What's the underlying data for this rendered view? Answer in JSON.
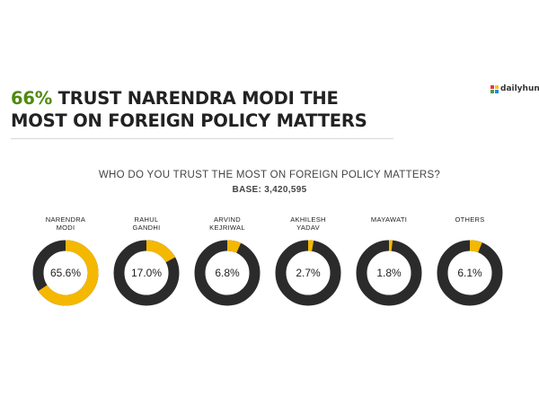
{
  "headline": {
    "highlight": "66%",
    "text": " TRUST NARENDRA MODI THE MOST ON FOREIGN POLICY MATTERS"
  },
  "brand": {
    "name": "dailyhunt",
    "colors": [
      "#e53935",
      "#fbc02d",
      "#43a047",
      "#1e88e5"
    ]
  },
  "chart_data": {
    "type": "pie",
    "variant": "donut",
    "title": "WHO DO YOU TRUST THE MOST ON FOREIGN POLICY MATTERS?",
    "subtitle": "BASE: 3,420,595",
    "colors": {
      "share": "#f5b800",
      "rest": "#2b2b2b"
    },
    "items": [
      {
        "label": "NARENDRA\nMODI",
        "value": 65.6,
        "display": "65.6%"
      },
      {
        "label": "RAHUL\nGANDHI",
        "value": 17.0,
        "display": "17.0%"
      },
      {
        "label": "ARVIND\nKEJRIWAL",
        "value": 6.8,
        "display": "6.8%"
      },
      {
        "label": "AKHILESH\nYADAV",
        "value": 2.7,
        "display": "2.7%"
      },
      {
        "label": "MAYAWATI",
        "value": 1.8,
        "display": "1.8%"
      },
      {
        "label": "OTHERS",
        "value": 6.1,
        "display": "6.1%"
      }
    ]
  }
}
